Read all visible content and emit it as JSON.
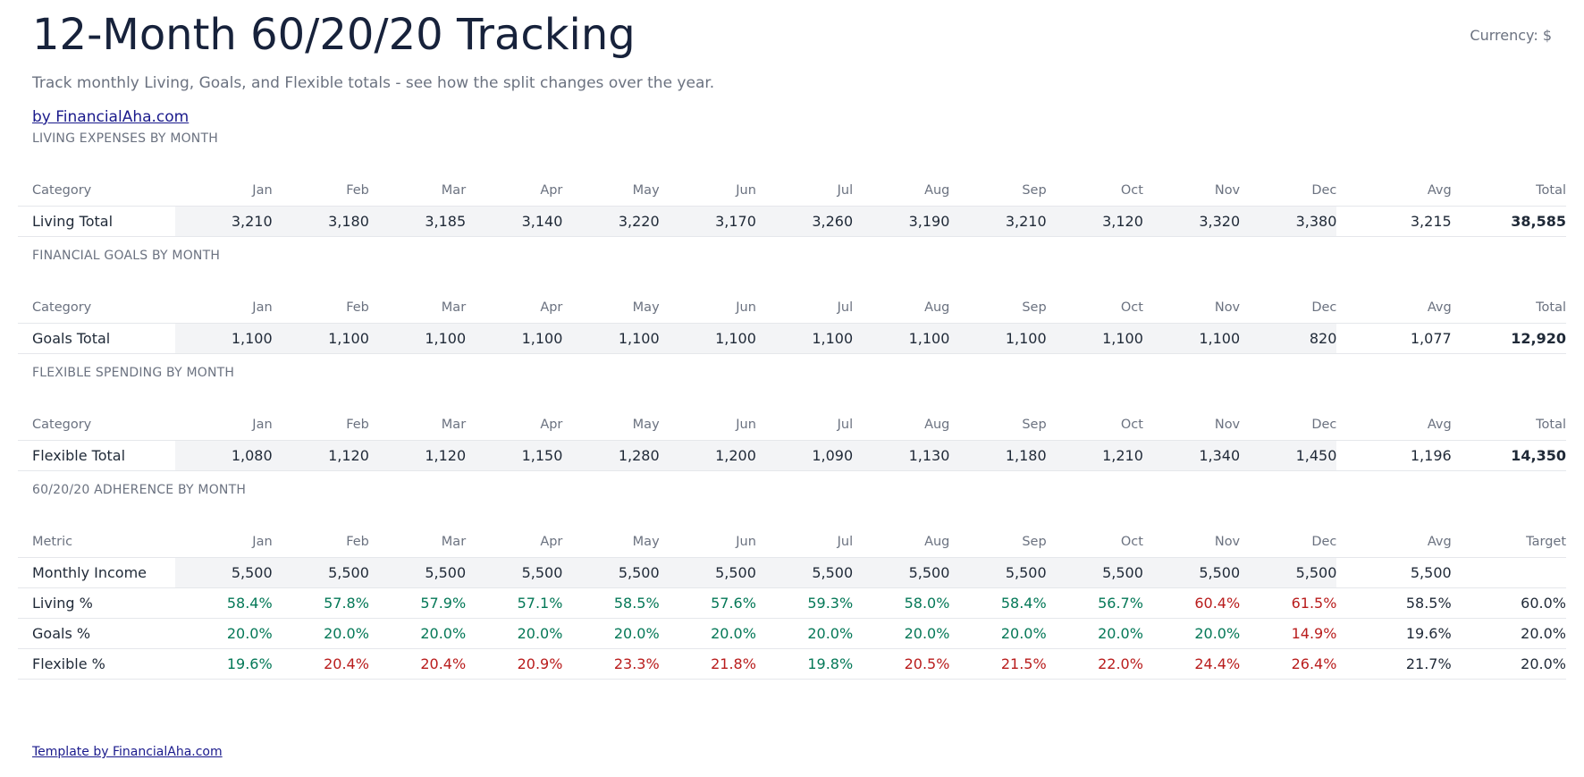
{
  "header": {
    "title": "12-Month 60/20/20 Tracking",
    "currency": "Currency: $",
    "subtitle": "Track monthly Living, Goals, and Flexible totals - see how the split changes over the year.",
    "byline": "by FinancialAha.com"
  },
  "months": [
    "Jan",
    "Feb",
    "Mar",
    "Apr",
    "May",
    "Jun",
    "Jul",
    "Aug",
    "Sep",
    "Oct",
    "Nov",
    "Dec"
  ],
  "col_category": "Category",
  "col_metric": "Metric",
  "col_avg": "Avg",
  "col_total": "Total",
  "col_target": "Target",
  "living": {
    "section_title": "LIVING EXPENSES BY MONTH",
    "row_label": "Living Total",
    "values": [
      "3,210",
      "3,180",
      "3,185",
      "3,140",
      "3,220",
      "3,170",
      "3,260",
      "3,190",
      "3,210",
      "3,120",
      "3,320",
      "3,380"
    ],
    "avg": "3,215",
    "total": "38,585"
  },
  "goals": {
    "section_title": "FINANCIAL GOALS BY MONTH",
    "row_label": "Goals Total",
    "values": [
      "1,100",
      "1,100",
      "1,100",
      "1,100",
      "1,100",
      "1,100",
      "1,100",
      "1,100",
      "1,100",
      "1,100",
      "1,100",
      "820"
    ],
    "avg": "1,077",
    "total": "12,920"
  },
  "flexible": {
    "section_title": "FLEXIBLE SPENDING BY MONTH",
    "row_label": "Flexible Total",
    "values": [
      "1,080",
      "1,120",
      "1,120",
      "1,150",
      "1,280",
      "1,200",
      "1,090",
      "1,130",
      "1,180",
      "1,210",
      "1,340",
      "1,450"
    ],
    "avg": "1,196",
    "total": "14,350"
  },
  "adherence": {
    "section_title": "60/20/20 ADHERENCE BY MONTH",
    "income": {
      "label": "Monthly Income",
      "values": [
        "5,500",
        "5,500",
        "5,500",
        "5,500",
        "5,500",
        "5,500",
        "5,500",
        "5,500",
        "5,500",
        "5,500",
        "5,500",
        "5,500"
      ],
      "avg": "5,500",
      "target": ""
    },
    "living_pct": {
      "label": "Living %",
      "values": [
        "58.4%",
        "57.8%",
        "57.9%",
        "57.1%",
        "58.5%",
        "57.6%",
        "59.3%",
        "58.0%",
        "58.4%",
        "56.7%",
        "60.4%",
        "61.5%"
      ],
      "status": [
        "ok",
        "ok",
        "ok",
        "ok",
        "ok",
        "ok",
        "ok",
        "ok",
        "ok",
        "ok",
        "over",
        "over"
      ],
      "avg": "58.5%",
      "target": "60.0%"
    },
    "goals_pct": {
      "label": "Goals %",
      "values": [
        "20.0%",
        "20.0%",
        "20.0%",
        "20.0%",
        "20.0%",
        "20.0%",
        "20.0%",
        "20.0%",
        "20.0%",
        "20.0%",
        "20.0%",
        "14.9%"
      ],
      "status": [
        "ok",
        "ok",
        "ok",
        "ok",
        "ok",
        "ok",
        "ok",
        "ok",
        "ok",
        "ok",
        "ok",
        "under"
      ],
      "avg": "19.6%",
      "target": "20.0%"
    },
    "flexible_pct": {
      "label": "Flexible %",
      "values": [
        "19.6%",
        "20.4%",
        "20.4%",
        "20.9%",
        "23.3%",
        "21.8%",
        "19.8%",
        "20.5%",
        "21.5%",
        "22.0%",
        "24.4%",
        "26.4%"
      ],
      "status": [
        "ok",
        "over",
        "over",
        "over",
        "over",
        "over",
        "ok",
        "over",
        "over",
        "over",
        "over",
        "over"
      ],
      "avg": "21.7%",
      "target": "20.0%"
    }
  },
  "colors": {
    "on_target": "#047857",
    "off_target": "#b91c1c",
    "title": "#17223b",
    "link": "#1a1a8c"
  },
  "footer": {
    "link": "Template by FinancialAha.com"
  }
}
